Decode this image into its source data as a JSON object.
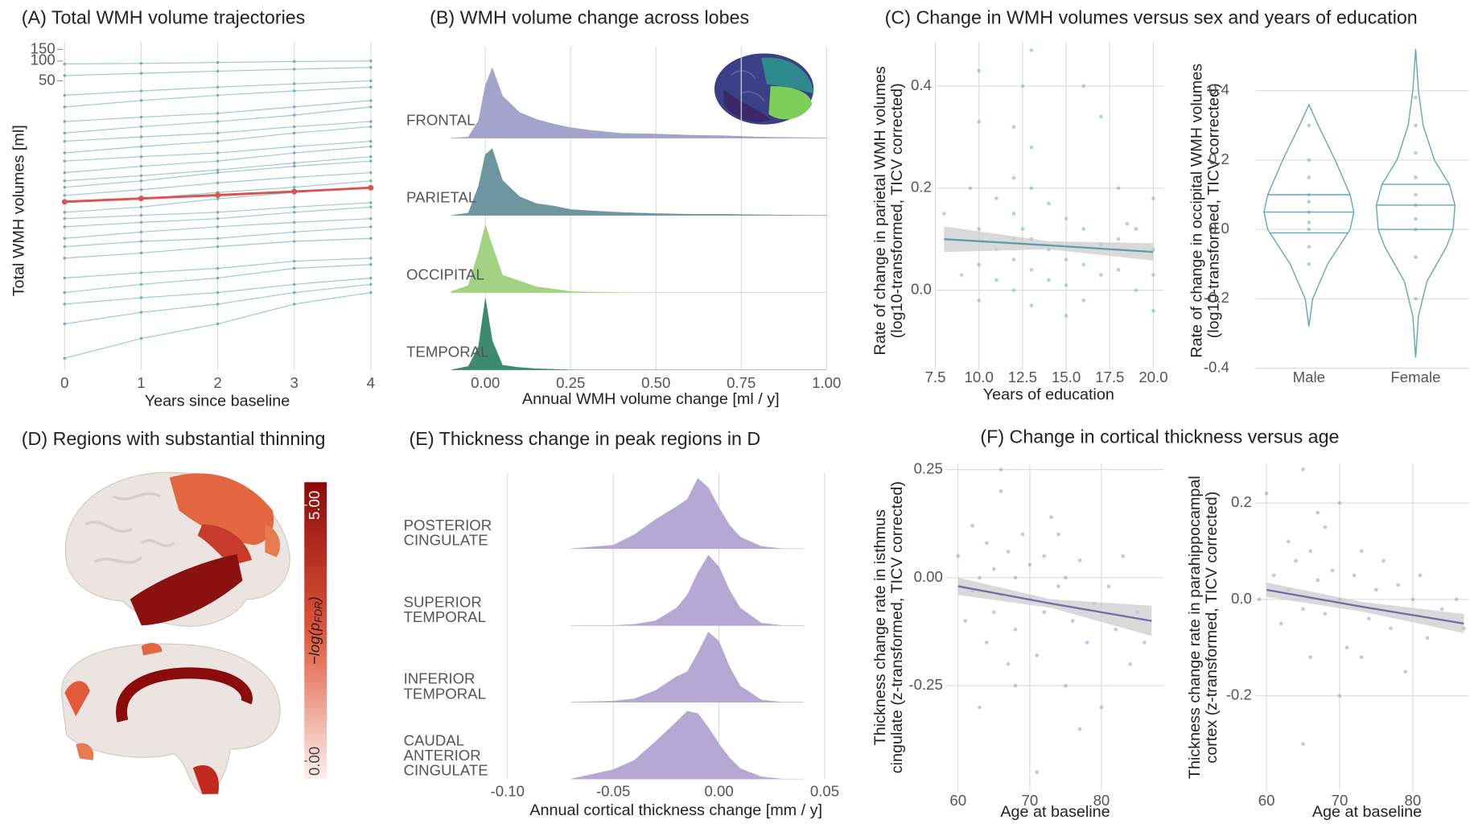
{
  "chart_data": [
    {
      "type": "line",
      "title": "(A) Total WMH volume trajectories",
      "xlabel": "Years since baseline",
      "ylabel": [
        "Total WMH volumes [ml]"
      ],
      "x": [
        0,
        1,
        2,
        3,
        4
      ],
      "xlim": [
        0,
        4
      ],
      "xticks": [
        0,
        1,
        2,
        3,
        4
      ],
      "ylim": [
        0.002,
        200
      ],
      "yscale": "log",
      "yticks": [
        50,
        100,
        150
      ],
      "grid": true,
      "trajectory_color": "#6fb0bd",
      "trajectories": [
        [
          0.003,
          0.006,
          0.01,
          0.02,
          0.03
        ],
        [
          0.01,
          0.015,
          0.02,
          0.03,
          0.04
        ],
        [
          0.02,
          0.025,
          0.03,
          0.04,
          0.05
        ],
        [
          0.03,
          0.04,
          0.05,
          0.07,
          0.08
        ],
        [
          0.05,
          0.06,
          0.07,
          0.09,
          0.1
        ],
        [
          0.1,
          0.12,
          0.15,
          0.18,
          0.2
        ],
        [
          0.15,
          0.18,
          0.2,
          0.25,
          0.3
        ],
        [
          0.2,
          0.25,
          0.3,
          0.35,
          0.4
        ],
        [
          0.3,
          0.35,
          0.4,
          0.5,
          0.6
        ],
        [
          0.4,
          0.45,
          0.5,
          0.6,
          0.7
        ],
        [
          0.5,
          0.6,
          0.8,
          1,
          1.2
        ],
        [
          0.7,
          0.8,
          1,
          1.2,
          1.5
        ],
        [
          0.9,
          1.1,
          1.4,
          1.7,
          2
        ],
        [
          1.2,
          1.5,
          2,
          2.5,
          3
        ],
        [
          1.5,
          1.8,
          2.2,
          2.8,
          3.5
        ],
        [
          2,
          2.5,
          3,
          4,
          5
        ],
        [
          3,
          3.5,
          4,
          5,
          6
        ],
        [
          4,
          5,
          6,
          8,
          10
        ],
        [
          6,
          7,
          8,
          10,
          12
        ],
        [
          8,
          10,
          12,
          15,
          20
        ],
        [
          12,
          14,
          16,
          20,
          25
        ],
        [
          20,
          25,
          30,
          35,
          40
        ],
        [
          30,
          35,
          40,
          45,
          50
        ],
        [
          60,
          65,
          70,
          75,
          80
        ],
        [
          90,
          92,
          95,
          98,
          100
        ]
      ],
      "mean_color": "#d9534f",
      "mean": [
        0.72,
        0.81,
        0.91,
        1.03,
        1.18
      ]
    },
    {
      "type": "ridgeline",
      "title": "(B) WMH volume change across lobes",
      "xlabel": "Annual WMH volume change [ml / y]",
      "xlim": [
        -0.13,
        1.05
      ],
      "xticks": [
        {
          "value": 0,
          "label": "0.00"
        },
        {
          "value": 0.25,
          "label": "0.25"
        },
        {
          "value": 0.5,
          "label": "0.50"
        },
        {
          "value": 0.75,
          "label": "0.75"
        },
        {
          "value": 1,
          "label": "1.00"
        }
      ],
      "x": [
        -0.1,
        -0.05,
        -0.02,
        0,
        0.02,
        0.05,
        0.1,
        0.15,
        0.2,
        0.25,
        0.3,
        0.4,
        0.5,
        0.6,
        0.7,
        0.8,
        0.9,
        1.0
      ],
      "series": [
        {
          "name": "FRONTAL",
          "color": "#a3a3cc",
          "values": [
            0,
            0.1,
            1.5,
            4.5,
            6.0,
            3.6,
            2.2,
            1.6,
            1.2,
            0.9,
            0.7,
            0.4,
            0.35,
            0.25,
            0.2,
            0.1,
            0.05,
            0.02
          ]
        },
        {
          "name": "PARIETAL",
          "color": "#6e96a0",
          "values": [
            0,
            0.2,
            2.5,
            5.2,
            5.7,
            3.0,
            1.6,
            1.0,
            0.8,
            0.5,
            0.4,
            0.25,
            0.15,
            0.1,
            0.1,
            0.05,
            0.02,
            0.01
          ]
        },
        {
          "name": "OCCIPITAL",
          "color": "#a3d283",
          "values": [
            0.1,
            0.6,
            3.5,
            5.8,
            4.0,
            1.5,
            1.0,
            0.5,
            0.3,
            0.1,
            0.05,
            0,
            0,
            0,
            0,
            0,
            0,
            0
          ]
        },
        {
          "name": "TEMPORAL",
          "color": "#3d8a6e",
          "values": [
            0,
            0.3,
            2.0,
            6.1,
            2.5,
            0.4,
            0.2,
            0.1,
            0.05,
            0,
            0,
            0,
            0,
            0,
            0,
            0,
            0,
            0
          ]
        }
      ]
    },
    {
      "type": "scatter",
      "title": "(C) Change in WMH volumes versus sex and years of education",
      "xlabel": "Years of education",
      "ylabel": [
        "Rate of change in parietal WMH volumes",
        "(log10-transformed, TICV corrected)"
      ],
      "xlim": [
        7.5,
        20.6
      ],
      "ylim": [
        -0.156,
        0.486
      ],
      "grid": true,
      "xticks": [
        7.5,
        {
          "value": 10,
          "label": "10.0"
        },
        12.5,
        {
          "value": 15,
          "label": "15.0"
        },
        17.5,
        {
          "value": 20,
          "label": "20.0"
        }
      ],
      "yticks": [
        {
          "value": 0,
          "label": "0.0"
        },
        0.2,
        0.4
      ],
      "color": "#6db3bf",
      "x": [
        8,
        9,
        9.5,
        10,
        10,
        10,
        10,
        11,
        11,
        11,
        12,
        12,
        12,
        12,
        12,
        12.5,
        12.5,
        13,
        13,
        13,
        13,
        13,
        14,
        14,
        14,
        15,
        15,
        15,
        15,
        16,
        16,
        16,
        17,
        17,
        17,
        18,
        18,
        18,
        18.5,
        19,
        19,
        20,
        20,
        20,
        20,
        10,
        12,
        16,
        13
      ],
      "values": [
        0.15,
        0.03,
        0.2,
        0.43,
        0.12,
        0.05,
        -0.02,
        0.18,
        0.08,
        0.02,
        0.32,
        0.15,
        0.1,
        0.06,
        0.0,
        0.4,
        0.12,
        0.28,
        0.2,
        0.1,
        0.04,
        -0.03,
        0.17,
        0.08,
        0.02,
        0.14,
        0.06,
        0.01,
        -0.05,
        0.12,
        0.05,
        -0.02,
        0.34,
        0.09,
        0.03,
        0.2,
        0.1,
        0.04,
        0.13,
        0.12,
        0.0,
        0.18,
        0.08,
        0.03,
        -0.04,
        0.33,
        0.22,
        0.4,
        0.47
      ],
      "fit": {
        "color": "#5a9ea8",
        "band_color": "#c9c9c9",
        "x": [
          8,
          14,
          20
        ],
        "values": [
          0.1,
          0.088,
          0.075
        ],
        "lower": [
          0.075,
          0.08,
          0.058
        ],
        "upper": [
          0.125,
          0.096,
          0.092
        ]
      }
    },
    {
      "type": "violin",
      "ylabel": [
        "Rate of change in occipital WMH volumes",
        "(log10-transformed, TICV corrected)"
      ],
      "ylim": [
        -0.405,
        0.54
      ],
      "grid": true,
      "yticks": [
        -0.4,
        -0.2,
        {
          "value": 0,
          "label": "0.0"
        },
        0.2,
        0.4
      ],
      "categories": [
        "Male",
        "Female"
      ],
      "color": "#5ea9b5",
      "violins": [
        {
          "y": [
            -0.28,
            -0.2,
            -0.1,
            0,
            0.05,
            0.1,
            0.2,
            0.3,
            0.36
          ],
          "density": [
            0,
            0.4,
            2.0,
            4.4,
            4.8,
            4.4,
            2.8,
            1.0,
            0
          ],
          "quantiles": [
            -0.01,
            0.05,
            0.1
          ],
          "points": [
            -0.1,
            -0.05,
            0,
            0.02,
            0.05,
            0.08,
            0.1,
            0.15,
            0.2,
            0.3
          ]
        },
        {
          "y": [
            -0.37,
            -0.25,
            -0.15,
            -0.05,
            0,
            0.07,
            0.13,
            0.2,
            0.3,
            0.4,
            0.52
          ],
          "density": [
            0,
            0.3,
            1.2,
            3.3,
            4.0,
            4.2,
            3.6,
            2.0,
            0.8,
            0.3,
            0
          ],
          "quantiles": [
            0.0,
            0.07,
            0.13
          ],
          "points": [
            -0.2,
            -0.08,
            0,
            0.03,
            0.07,
            0.1,
            0.15,
            0.22,
            0.3,
            0.38
          ]
        }
      ]
    },
    {
      "type": "brain_map",
      "title": "(D) Regions with substantial thinning",
      "colorbar": {
        "lim": [
          -0.35,
          5.45
        ],
        "colors": [
          "#fdf1ee",
          "#e0553a",
          "#8b0a0a"
        ],
        "label": [
          "−log(p",
          "FDR",
          ")"
        ],
        "ticks": [
          {
            "value": 0,
            "label": "0.00"
          },
          {
            "value": 5,
            "label": "5.00"
          }
        ]
      }
    },
    {
      "type": "ridgeline",
      "title": "(E) Thickness change in peak regions in D",
      "xlabel": "Annual cortical thickness change [mm / y]",
      "xlim": [
        -0.1,
        0.07
      ],
      "xticks": [
        {
          "value": -0.1,
          "label": "-0.10"
        },
        {
          "value": -0.05,
          "label": "-0.05"
        },
        {
          "value": 0,
          "label": "0.00"
        },
        {
          "value": 0.05,
          "label": "0.05"
        }
      ],
      "x": [
        -0.07,
        -0.05,
        -0.04,
        -0.03,
        -0.02,
        -0.015,
        -0.01,
        -0.005,
        0,
        0.005,
        0.01,
        0.02,
        0.03,
        0.04
      ],
      "series": [
        {
          "name": [
            "POSTERIOR",
            "CINGULATE"
          ],
          "color": "#b5a8d2",
          "values": [
            0,
            0.3,
            1.2,
            2.5,
            3.6,
            4.2,
            6.0,
            5.2,
            3.5,
            2.0,
            1.0,
            0.2,
            0,
            0
          ]
        },
        {
          "name": [
            "SUPERIOR",
            "TEMPORAL"
          ],
          "color": "#b5a8d2",
          "values": [
            0,
            0,
            0.1,
            0.4,
            1.5,
            2.6,
            4.5,
            6.0,
            5.0,
            3.0,
            1.5,
            0.2,
            0,
            0
          ]
        },
        {
          "name": [
            "INFERIOR",
            "TEMPORAL"
          ],
          "color": "#b5a8d2",
          "values": [
            0,
            0.1,
            0.3,
            1.0,
            2.2,
            2.6,
            4.2,
            6.0,
            5.2,
            3.0,
            1.4,
            0.2,
            0,
            0
          ]
        },
        {
          "name": [
            "CAUDAL",
            "ANTERIOR",
            "CINGULATE"
          ],
          "color": "#b5a8d2",
          "values": [
            0,
            0.8,
            1.6,
            3.2,
            4.9,
            5.8,
            5.6,
            4.4,
            3.0,
            1.8,
            0.9,
            0.2,
            0,
            0
          ]
        }
      ]
    },
    {
      "type": "scatter",
      "title": "(F) Change in cortical thickness versus age",
      "xlabel": "Age at baseline",
      "ylabel": [
        "Thickness change rate in isthmus",
        "cingulate (z-transformed, TICV corrected)"
      ],
      "xlim": [
        58.4,
        88.7
      ],
      "ylim": [
        -0.494,
        0.264
      ],
      "grid": true,
      "xticks": [
        60,
        70,
        80
      ],
      "yticks": [
        0.25,
        {
          "value": 0,
          "label": "0.00"
        },
        -0.25
      ],
      "color": "#a292cc",
      "x": [
        60,
        61,
        62,
        62,
        63,
        64,
        64,
        65,
        65,
        66,
        66,
        67,
        67,
        68,
        68,
        69,
        70,
        70,
        71,
        72,
        72,
        73,
        74,
        75,
        75,
        76,
        77,
        78,
        79,
        80,
        81,
        82,
        83,
        84,
        85,
        86,
        63,
        66,
        71,
        74,
        68,
        77
      ],
      "values": [
        0.05,
        -0.1,
        0.12,
        -0.03,
        0.0,
        0.08,
        -0.15,
        0.02,
        -0.08,
        0.2,
        -0.04,
        0.06,
        -0.2,
        0.0,
        -0.12,
        0.1,
        -0.05,
        0.03,
        -0.18,
        0.05,
        -0.08,
        0.14,
        -0.02,
        -0.25,
        0.0,
        -0.1,
        0.04,
        -0.15,
        -0.06,
        -0.3,
        -0.02,
        -0.12,
        0.05,
        -0.2,
        -0.08,
        -0.15,
        -0.3,
        0.25,
        -0.45,
        0.1,
        -0.25,
        -0.35
      ],
      "fit": {
        "color": "#7c6aa8",
        "band_color": "#c9c9c9",
        "x": [
          60,
          73,
          87
        ],
        "values": [
          -0.02,
          -0.06,
          -0.1
        ],
        "lower": [
          -0.04,
          -0.07,
          -0.135
        ],
        "upper": [
          0.0,
          -0.05,
          -0.065
        ]
      }
    },
    {
      "type": "scatter",
      "xlabel": "Age at baseline",
      "ylabel": [
        "Thickness change rate in parahippocampal",
        "cortex (z-transformed, TICV corrected)"
      ],
      "xlim": [
        58.5,
        87.7
      ],
      "ylim": [
        -0.398,
        0.282
      ],
      "grid": true,
      "xticks": [
        60,
        70,
        80
      ],
      "yticks": [
        0.2,
        {
          "value": 0,
          "label": "0.0"
        },
        -0.2
      ],
      "color": "#a292cc",
      "x": [
        59,
        60,
        61,
        62,
        63,
        63,
        64,
        65,
        65,
        66,
        66,
        67,
        68,
        68,
        69,
        70,
        70,
        71,
        72,
        73,
        74,
        75,
        76,
        77,
        78,
        79,
        80,
        81,
        82,
        84,
        86,
        87,
        65,
        67,
        70,
        73
      ],
      "values": [
        0.0,
        0.22,
        0.05,
        -0.05,
        0.12,
        0.02,
        0.08,
        -0.02,
        0.27,
        0.1,
        -0.12,
        0.04,
        0.15,
        -0.03,
        0.06,
        0.0,
        0.2,
        -0.1,
        0.05,
        0.1,
        -0.04,
        0.02,
        0.08,
        -0.06,
        0.03,
        -0.15,
        0.0,
        0.05,
        -0.08,
        -0.02,
        0.0,
        -0.06,
        -0.3,
        0.18,
        -0.2,
        -0.12
      ],
      "fit": {
        "color": "#7c6aa8",
        "band_color": "#c9c9c9",
        "x": [
          60,
          73,
          87
        ],
        "values": [
          0.02,
          -0.015,
          -0.05
        ],
        "lower": [
          0.005,
          -0.025,
          -0.07
        ],
        "upper": [
          0.035,
          -0.005,
          -0.03
        ]
      }
    }
  ]
}
